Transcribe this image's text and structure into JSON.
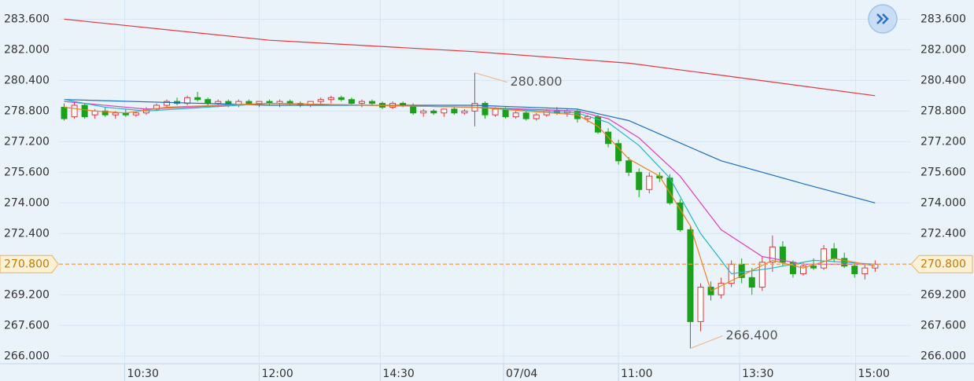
{
  "chart_data": {
    "type": "candlestick",
    "ylim": [
      265.6,
      284.6
    ],
    "yticks": [
      {
        "value": 266.0,
        "label": "266.000"
      },
      {
        "value": 267.6,
        "label": "267.600"
      },
      {
        "value": 269.2,
        "label": "269.200"
      },
      {
        "value": 272.4,
        "label": "272.400"
      },
      {
        "value": 274.0,
        "label": "274.000"
      },
      {
        "value": 275.6,
        "label": "275.600"
      },
      {
        "value": 277.2,
        "label": "277.200"
      },
      {
        "value": 278.8,
        "label": "278.800"
      },
      {
        "value": 280.4,
        "label": "280.400"
      },
      {
        "value": 282.0,
        "label": "282.000"
      },
      {
        "value": 283.6,
        "label": "283.600"
      }
    ],
    "xlim": [
      -0.5,
      82.5
    ],
    "xticks": [
      {
        "value": 5.9,
        "label": "10:30"
      },
      {
        "value": 19.0,
        "label": "12:00"
      },
      {
        "value": 30.8,
        "label": "14:30"
      },
      {
        "value": 42.8,
        "label": "07/04"
      },
      {
        "value": 54.0,
        "label": "11:00"
      },
      {
        "value": 65.8,
        "label": "13:30"
      },
      {
        "value": 77.1,
        "label": "15:00"
      }
    ],
    "grid": true,
    "up_color": "#e0393e",
    "down_color": "#1aa01a",
    "last_price": {
      "value": 270.8,
      "label": "270.800"
    },
    "annotations": [
      {
        "index": 40,
        "value": 280.8,
        "label": "280.800"
      },
      {
        "index": 61,
        "value": 266.4,
        "label": "266.400"
      }
    ],
    "candles": [
      [
        279.0,
        279.2,
        278.3,
        278.4
      ],
      [
        278.5,
        279.3,
        278.4,
        279.1
      ],
      [
        279.1,
        279.2,
        278.4,
        278.5
      ],
      [
        278.6,
        278.9,
        278.4,
        278.8
      ],
      [
        278.8,
        279.0,
        278.5,
        278.6
      ],
      [
        278.6,
        278.8,
        278.4,
        278.7
      ],
      [
        278.7,
        278.9,
        278.5,
        278.6
      ],
      [
        278.6,
        278.8,
        278.5,
        278.7
      ],
      [
        278.7,
        279.0,
        278.6,
        278.9
      ],
      [
        278.9,
        279.2,
        278.8,
        279.1
      ],
      [
        279.1,
        279.4,
        279.0,
        279.3
      ],
      [
        279.3,
        279.5,
        279.1,
        279.2
      ],
      [
        279.2,
        279.6,
        279.1,
        279.5
      ],
      [
        279.5,
        279.8,
        279.3,
        279.4
      ],
      [
        279.4,
        279.5,
        279.1,
        279.2
      ],
      [
        279.2,
        279.4,
        279.0,
        279.3
      ],
      [
        279.3,
        279.4,
        279.0,
        279.1
      ],
      [
        279.1,
        279.4,
        279.0,
        279.3
      ],
      [
        279.3,
        279.4,
        279.1,
        279.2
      ],
      [
        279.2,
        279.3,
        279.0,
        279.3
      ],
      [
        279.3,
        279.4,
        279.1,
        279.2
      ],
      [
        279.2,
        279.4,
        279.0,
        279.3
      ],
      [
        279.3,
        279.4,
        279.1,
        279.2
      ],
      [
        279.2,
        279.3,
        279.0,
        279.1
      ],
      [
        279.1,
        279.3,
        279.0,
        279.3
      ],
      [
        279.3,
        279.5,
        279.1,
        279.4
      ],
      [
        279.4,
        279.6,
        279.2,
        279.5
      ],
      [
        279.5,
        279.6,
        279.3,
        279.4
      ],
      [
        279.4,
        279.5,
        279.1,
        279.2
      ],
      [
        279.2,
        279.4,
        279.0,
        279.3
      ],
      [
        279.3,
        279.4,
        279.1,
        279.2
      ],
      [
        279.2,
        279.3,
        278.9,
        279.0
      ],
      [
        279.0,
        279.3,
        278.9,
        279.2
      ],
      [
        279.2,
        279.3,
        279.0,
        279.1
      ],
      [
        279.1,
        279.2,
        278.6,
        278.7
      ],
      [
        278.7,
        278.9,
        278.5,
        278.8
      ],
      [
        278.8,
        278.9,
        278.6,
        278.7
      ],
      [
        278.7,
        278.9,
        278.5,
        278.9
      ],
      [
        278.9,
        279.0,
        278.6,
        278.7
      ],
      [
        278.7,
        278.9,
        278.6,
        278.8
      ],
      [
        278.8,
        280.8,
        278.0,
        279.2
      ],
      [
        279.2,
        279.3,
        278.4,
        278.6
      ],
      [
        278.6,
        279.0,
        278.5,
        278.9
      ],
      [
        278.9,
        279.0,
        278.4,
        278.5
      ],
      [
        278.5,
        278.8,
        278.4,
        278.7
      ],
      [
        278.7,
        278.8,
        278.3,
        278.4
      ],
      [
        278.4,
        278.7,
        278.3,
        278.6
      ],
      [
        278.6,
        278.9,
        278.5,
        278.8
      ],
      [
        278.8,
        279.0,
        278.6,
        278.7
      ],
      [
        278.7,
        278.9,
        278.5,
        278.8
      ],
      [
        278.8,
        278.9,
        278.2,
        278.4
      ],
      [
        278.4,
        278.6,
        278.2,
        278.5
      ],
      [
        278.5,
        278.6,
        277.6,
        277.7
      ],
      [
        277.7,
        277.9,
        276.9,
        277.1
      ],
      [
        277.1,
        277.3,
        276.0,
        276.2
      ],
      [
        276.2,
        276.4,
        275.4,
        275.6
      ],
      [
        275.6,
        275.8,
        274.3,
        274.7
      ],
      [
        274.7,
        275.6,
        274.5,
        275.4
      ],
      [
        275.4,
        275.6,
        275.1,
        275.3
      ],
      [
        275.3,
        275.5,
        273.9,
        274.0
      ],
      [
        274.0,
        274.2,
        272.5,
        272.6
      ],
      [
        272.6,
        272.8,
        266.4,
        267.8
      ],
      [
        267.8,
        269.8,
        267.3,
        269.6
      ],
      [
        269.6,
        269.9,
        268.9,
        269.2
      ],
      [
        269.2,
        270.1,
        269.0,
        269.8
      ],
      [
        269.8,
        271.0,
        269.6,
        270.8
      ],
      [
        270.8,
        271.1,
        269.8,
        270.1
      ],
      [
        270.1,
        270.6,
        269.2,
        269.6
      ],
      [
        269.6,
        271.2,
        269.4,
        270.9
      ],
      [
        270.9,
        272.3,
        270.4,
        271.7
      ],
      [
        271.7,
        272.0,
        270.7,
        270.9
      ],
      [
        270.9,
        271.0,
        270.1,
        270.3
      ],
      [
        270.3,
        270.9,
        270.2,
        270.7
      ],
      [
        270.7,
        271.1,
        270.5,
        270.6
      ],
      [
        270.6,
        271.8,
        270.5,
        271.6
      ],
      [
        271.6,
        271.9,
        270.9,
        271.1
      ],
      [
        271.1,
        271.4,
        270.6,
        270.7
      ],
      [
        270.7,
        270.9,
        270.1,
        270.3
      ],
      [
        270.3,
        270.8,
        270.0,
        270.6
      ],
      [
        270.6,
        271.0,
        270.4,
        270.8
      ]
    ],
    "lines": [
      {
        "color": "#e0393e",
        "x": [
          0,
          20,
          40,
          55,
          65,
          79
        ],
        "values": [
          283.6,
          282.5,
          281.9,
          281.3,
          280.6,
          279.6
        ]
      },
      {
        "color": "#1b6fc4",
        "x": [
          0,
          20,
          40,
          50,
          55,
          58,
          64,
          72,
          79
        ],
        "values": [
          279.4,
          279.1,
          279.1,
          278.9,
          278.3,
          277.6,
          276.2,
          275.0,
          274.0
        ]
      },
      {
        "color": "#e040c0",
        "x": [
          0,
          8,
          20,
          40,
          50,
          53,
          56,
          60,
          64,
          68,
          72,
          79
        ],
        "values": [
          279.3,
          278.9,
          279.2,
          279.0,
          278.8,
          278.4,
          277.4,
          275.4,
          272.6,
          271.2,
          270.8,
          270.8
        ]
      },
      {
        "color": "#20b8c8",
        "x": [
          0,
          4,
          8,
          20,
          40,
          50,
          53,
          56,
          59,
          62,
          65,
          69,
          73,
          79
        ],
        "values": [
          279.4,
          279.0,
          278.8,
          279.2,
          279.0,
          278.7,
          278.2,
          277.0,
          275.3,
          272.4,
          270.3,
          270.6,
          271.0,
          270.8
        ]
      },
      {
        "color": "#f08020",
        "x": [
          0,
          3,
          6,
          10,
          20,
          40,
          50,
          52,
          55,
          58,
          61,
          63,
          66,
          69,
          72,
          75,
          79
        ],
        "values": [
          279.0,
          278.8,
          278.7,
          279.0,
          279.2,
          279.0,
          278.6,
          278.0,
          276.3,
          275.4,
          272.8,
          269.4,
          270.2,
          271.0,
          270.6,
          271.1,
          270.7
        ]
      }
    ]
  }
}
